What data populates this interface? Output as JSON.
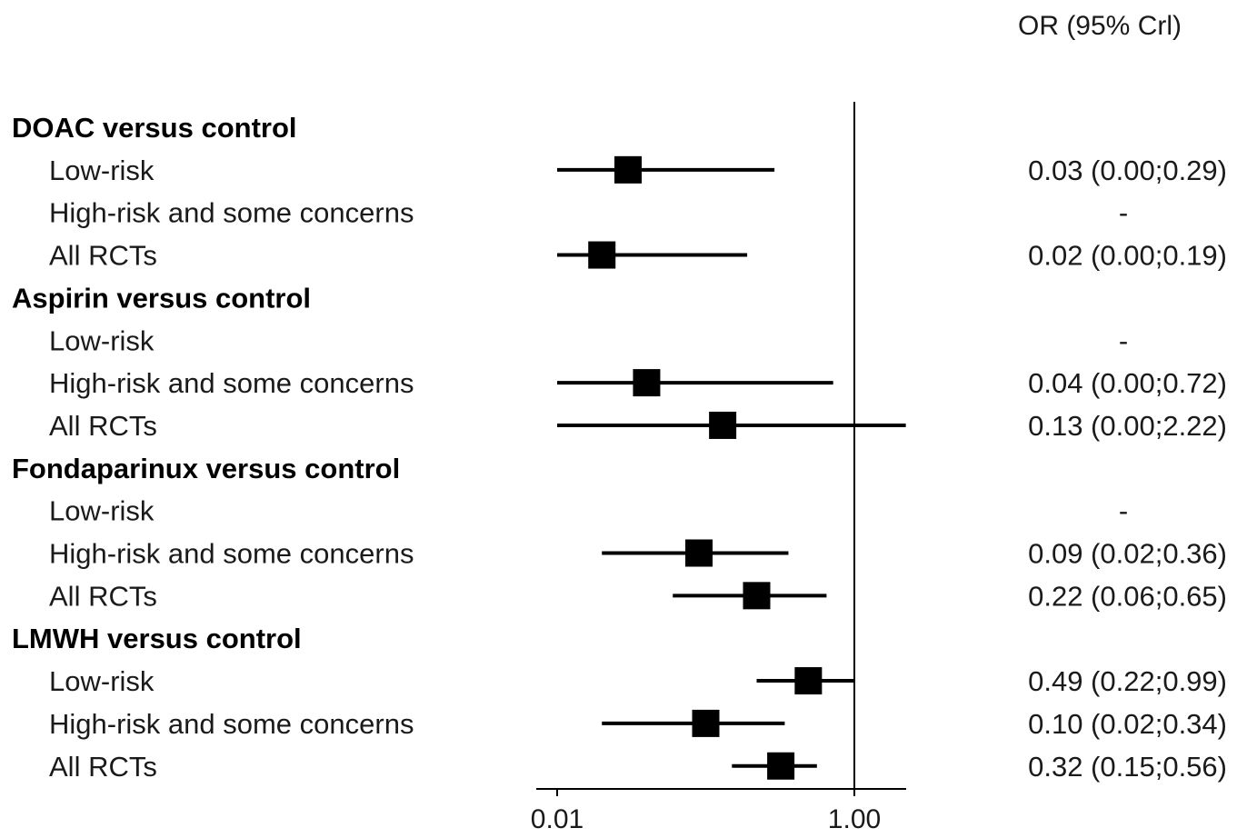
{
  "chart_data": {
    "type": "forest",
    "header": "OR (95% Crl)",
    "x_scale": "log",
    "x_ticks": [
      {
        "value": 0.01,
        "label": "0.01"
      },
      {
        "value": 1.0,
        "label": "1.00"
      }
    ],
    "reference_line": 1.0,
    "rows": [
      {
        "kind": "group",
        "label": "DOAC versus control"
      },
      {
        "kind": "item",
        "label": "Low-risk",
        "or": 0.03,
        "lo": 0.0,
        "hi": 0.29,
        "text": "0.03 (0.00;0.29)"
      },
      {
        "kind": "item",
        "label": "High-risk and some concerns",
        "or": null,
        "lo": null,
        "hi": null,
        "text": "-"
      },
      {
        "kind": "item",
        "label": "All RCTs",
        "or": 0.02,
        "lo": 0.0,
        "hi": 0.19,
        "text": "0.02 (0.00;0.19)"
      },
      {
        "kind": "group",
        "label": "Aspirin versus control"
      },
      {
        "kind": "item",
        "label": "Low-risk",
        "or": null,
        "lo": null,
        "hi": null,
        "text": "-"
      },
      {
        "kind": "item",
        "label": "High-risk and some concerns",
        "or": 0.04,
        "lo": 0.0,
        "hi": 0.72,
        "text": "0.04 (0.00;0.72)"
      },
      {
        "kind": "item",
        "label": "All RCTs",
        "or": 0.13,
        "lo": 0.0,
        "hi": 2.22,
        "text": "0.13 (0.00;2.22)"
      },
      {
        "kind": "group",
        "label": "Fondaparinux versus control"
      },
      {
        "kind": "item",
        "label": "Low-risk",
        "or": null,
        "lo": null,
        "hi": null,
        "text": "-"
      },
      {
        "kind": "item",
        "label": "High-risk and some concerns",
        "or": 0.09,
        "lo": 0.02,
        "hi": 0.36,
        "text": "0.09 (0.02;0.36)"
      },
      {
        "kind": "item",
        "label": "All RCTs",
        "or": 0.22,
        "lo": 0.06,
        "hi": 0.65,
        "text": "0.22 (0.06;0.65)"
      },
      {
        "kind": "group",
        "label": "LMWH versus control"
      },
      {
        "kind": "item",
        "label": "Low-risk",
        "or": 0.49,
        "lo": 0.22,
        "hi": 0.99,
        "text": "0.49 (0.22;0.99)"
      },
      {
        "kind": "item",
        "label": "High-risk and some concerns",
        "or": 0.1,
        "lo": 0.02,
        "hi": 0.34,
        "text": "0.10 (0.02;0.34)"
      },
      {
        "kind": "item",
        "label": "All RCTs",
        "or": 0.32,
        "lo": 0.15,
        "hi": 0.56,
        "text": "0.32 (0.15;0.56)"
      }
    ]
  }
}
